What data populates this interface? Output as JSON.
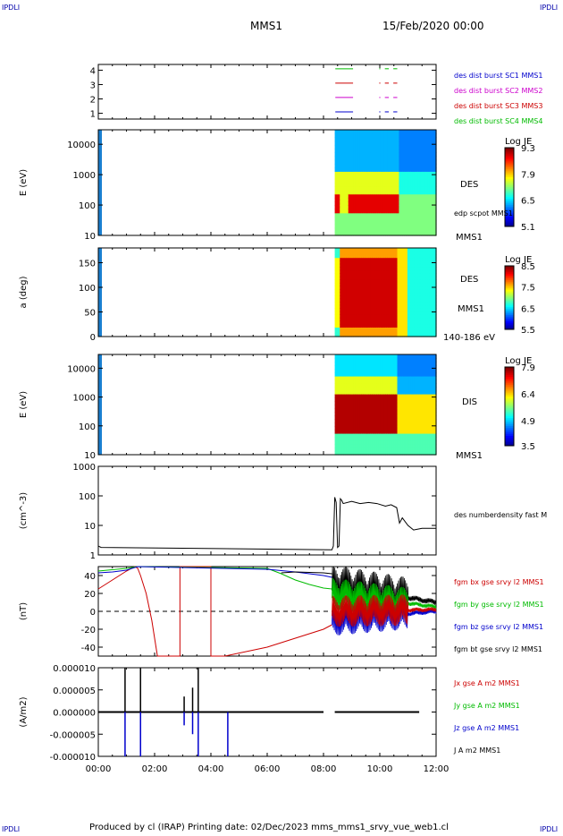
{
  "header": {
    "corner_left": "IPDLI",
    "corner_right": "IPDLI",
    "spacecraft": "MMS1",
    "date_time": "15/Feb/2020 00:00"
  },
  "footer": {
    "text": "Produced by cl (IRAP)   Printing date: 02/Dec/2023   mms_mms1_srvy_vue_web1.cl",
    "corner_left": "IPDLI",
    "corner_right": "IPDLI"
  },
  "colors": {
    "mms1": "#000000",
    "mms2": "#cc0000",
    "mms3": "#cc00cc",
    "mms4": "#0000cc",
    "c1": "#0000cc",
    "c2": "#cc00cc",
    "c3": "#cc0000",
    "c4": "#00bb00",
    "bx": "#cc0000",
    "by": "#00bb00",
    "bz": "#0000cc",
    "bt": "#000000",
    "zero_line": "#000000"
  },
  "chart_data": [
    {
      "id": "burst",
      "type": "line",
      "x_ticks": [
        "00:00",
        "02:00",
        "04:00",
        "06:00",
        "08:00",
        "10:00",
        "12:00"
      ],
      "yticks": [
        "1",
        "2",
        "3",
        "4"
      ],
      "ylim": [
        0.6,
        4.4
      ],
      "legend": [
        {
          "label": "des dist burst SC1 MMS1",
          "color": "#0000cc"
        },
        {
          "label": "des dist burst SC2 MMS2",
          "color": "#cc00cc"
        },
        {
          "label": "des dist burst SC3 MMS3",
          "color": "#cc0000"
        },
        {
          "label": "des dist burst SC4 MMS4",
          "color": "#00bb00"
        }
      ],
      "series": [
        {
          "level": 4,
          "color": "#00bb00",
          "segments": [
            [
              8.42,
              9.05
            ],
            [
              9.98,
              10.02
            ],
            [
              10.18,
              10.32
            ],
            [
              10.48,
              10.62
            ]
          ]
        },
        {
          "level": 3,
          "color": "#cc0000",
          "segments": [
            [
              8.42,
              9.05
            ],
            [
              9.98,
              10.02
            ],
            [
              10.18,
              10.32
            ],
            [
              10.48,
              10.62
            ]
          ]
        },
        {
          "level": 2,
          "color": "#cc00cc",
          "segments": [
            [
              8.42,
              9.05
            ],
            [
              9.98,
              10.02
            ],
            [
              10.18,
              10.32
            ],
            [
              10.48,
              10.62
            ]
          ]
        },
        {
          "level": 1,
          "color": "#0000cc",
          "segments": [
            [
              8.42,
              9.05
            ],
            [
              9.98,
              10.02
            ],
            [
              10.18,
              10.32
            ],
            [
              10.48,
              10.62
            ]
          ]
        }
      ]
    },
    {
      "id": "des_energy",
      "type": "heatmap",
      "ylabel": "E (eV)",
      "yticks": [
        "10",
        "100",
        "1000",
        "10000"
      ],
      "ylim": [
        10,
        30000
      ],
      "colorbar_title": "Log JE",
      "colorbar_ticks": [
        "9.3",
        "7.9",
        "6.5",
        "5.1"
      ],
      "colorbar_range": [
        5.1,
        9.3
      ],
      "side_label": "DES",
      "side_label_2": "edp scpot MMS1",
      "side_label_3": "MMS1"
    },
    {
      "id": "des_pitch",
      "type": "heatmap",
      "ylabel": "a (deg)",
      "yticks": [
        "0",
        "50",
        "100",
        "150"
      ],
      "ylim": [
        0,
        180
      ],
      "colorbar_title": "Log JE",
      "colorbar_ticks": [
        "8.5",
        "7.5",
        "6.5",
        "5.5"
      ],
      "colorbar_range": [
        5.5,
        8.5
      ],
      "side_label": "DES",
      "side_label_2": "MMS1",
      "side_label_3": "140-186 eV"
    },
    {
      "id": "dis_energy",
      "type": "heatmap",
      "ylabel": "E (eV)",
      "yticks": [
        "10",
        "100",
        "1000",
        "10000"
      ],
      "ylim": [
        10,
        30000
      ],
      "colorbar_title": "Log JE",
      "colorbar_ticks": [
        "7.9",
        "6.4",
        "4.9",
        "3.5"
      ],
      "colorbar_range": [
        3.5,
        7.9
      ],
      "side_label": "DIS",
      "side_label_2": "MMS1"
    },
    {
      "id": "density",
      "type": "line",
      "ylabel": "(cm^-3)",
      "yticks": [
        "1",
        "10",
        "100",
        "1000"
      ],
      "ylim": [
        1,
        1000
      ],
      "legend": [
        {
          "label": "des numberdensity fast M",
          "color": "#000000"
        }
      ],
      "x": [
        0.0,
        0.1,
        8.3,
        8.35,
        8.4,
        8.45,
        8.5,
        8.55,
        8.6,
        8.65,
        8.7,
        9.0,
        9.3,
        9.6,
        9.9,
        10.2,
        10.4,
        10.6,
        10.7,
        10.8,
        11.0,
        11.2,
        11.5,
        12.0
      ],
      "y": [
        2.0,
        1.8,
        1.5,
        2.0,
        90,
        60,
        1.8,
        2.0,
        80,
        70,
        55,
        65,
        55,
        60,
        55,
        45,
        50,
        40,
        12,
        18,
        10,
        7,
        8,
        8
      ]
    },
    {
      "id": "field",
      "type": "line",
      "ylabel": "(nT)",
      "yticks": [
        "-40",
        "-20",
        "0",
        "20",
        "40"
      ],
      "ylim": [
        -50,
        50
      ],
      "legend": [
        {
          "label": "fgm bx gse srvy l2 MMS1",
          "color": "#cc0000"
        },
        {
          "label": "fgm by gse srvy l2 MMS1",
          "color": "#00bb00"
        },
        {
          "label": "fgm bz gse srvy l2 MMS1",
          "color": "#0000cc"
        },
        {
          "label": "fgm bt gse srvy l2 MMS1",
          "color": "#000000"
        }
      ],
      "series": [
        {
          "name": "bx",
          "color": "#cc0000",
          "x": [
            0.0,
            0.5,
            1.0,
            1.3,
            1.4,
            1.5,
            1.7,
            1.9,
            2.0,
            2.1,
            2.9,
            2.9,
            4.0,
            4.0,
            4.5,
            6.0,
            7.0,
            8.0,
            8.3
          ],
          "y": [
            25,
            35,
            45,
            50,
            48,
            40,
            20,
            -10,
            -30,
            -50,
            -50,
            50,
            50,
            -50,
            -50,
            -40,
            -30,
            -20,
            -15
          ]
        },
        {
          "name": "by",
          "color": "#00bb00",
          "x": [
            0.0,
            1.0,
            1.4,
            6.0,
            6.5,
            7.0,
            7.5,
            8.0,
            8.3
          ],
          "y": [
            45,
            48,
            50,
            48,
            42,
            35,
            30,
            26,
            25
          ]
        },
        {
          "name": "bz",
          "color": "#0000cc",
          "x": [
            0.0,
            0.5,
            1.0,
            1.4,
            6.0,
            7.0,
            8.0,
            8.3
          ],
          "y": [
            43,
            44,
            46,
            50,
            47,
            44,
            40,
            38
          ]
        },
        {
          "name": "bt",
          "color": "#000000",
          "x": [
            6.5,
            7.0,
            8.0,
            8.3
          ],
          "y": [
            43,
            44,
            43,
            42
          ]
        }
      ],
      "tail": {
        "x_start": 8.3,
        "x_end": 12.0,
        "bt_level": [
          30,
          10
        ],
        "bx_level": [
          0,
          2
        ],
        "by_level": [
          20,
          5
        ],
        "bz_level": [
          -10,
          0
        ],
        "spread": 25
      },
      "zero_line": true
    },
    {
      "id": "current",
      "type": "line",
      "ylabel": "(A/m2)",
      "yticks": [
        "-0.000010",
        "-0.000005",
        "0.000000",
        "0.000005",
        "0.000010"
      ],
      "ylim": [
        -1e-05,
        1e-05
      ],
      "legend": [
        {
          "label": "Jx gse A m2 MMS1",
          "color": "#cc0000"
        },
        {
          "label": "Jy gse A m2 MMS1",
          "color": "#00bb00"
        },
        {
          "label": "Jz gse A m2 MMS1",
          "color": "#0000cc"
        },
        {
          "label": "J A m2 MMS1",
          "color": "#000000"
        }
      ],
      "spikes": [
        {
          "x": 0.95,
          "up": 1e-05,
          "down": -1e-05
        },
        {
          "x": 1.5,
          "up": 1e-05,
          "down": -1e-05
        },
        {
          "x": 3.05,
          "up": 3.5e-06,
          "down": -3e-06
        },
        {
          "x": 3.35,
          "up": 5.5e-06,
          "down": -5e-06
        },
        {
          "x": 3.55,
          "up": 1e-05,
          "down": -1e-05
        },
        {
          "x": 4.6,
          "up": 0.0,
          "down": -1e-05
        }
      ],
      "x_ticks": [
        "00:00",
        "02:00",
        "04:00",
        "06:00",
        "08:00",
        "10:00",
        "12:00"
      ],
      "xlim": [
        0,
        12
      ]
    }
  ]
}
